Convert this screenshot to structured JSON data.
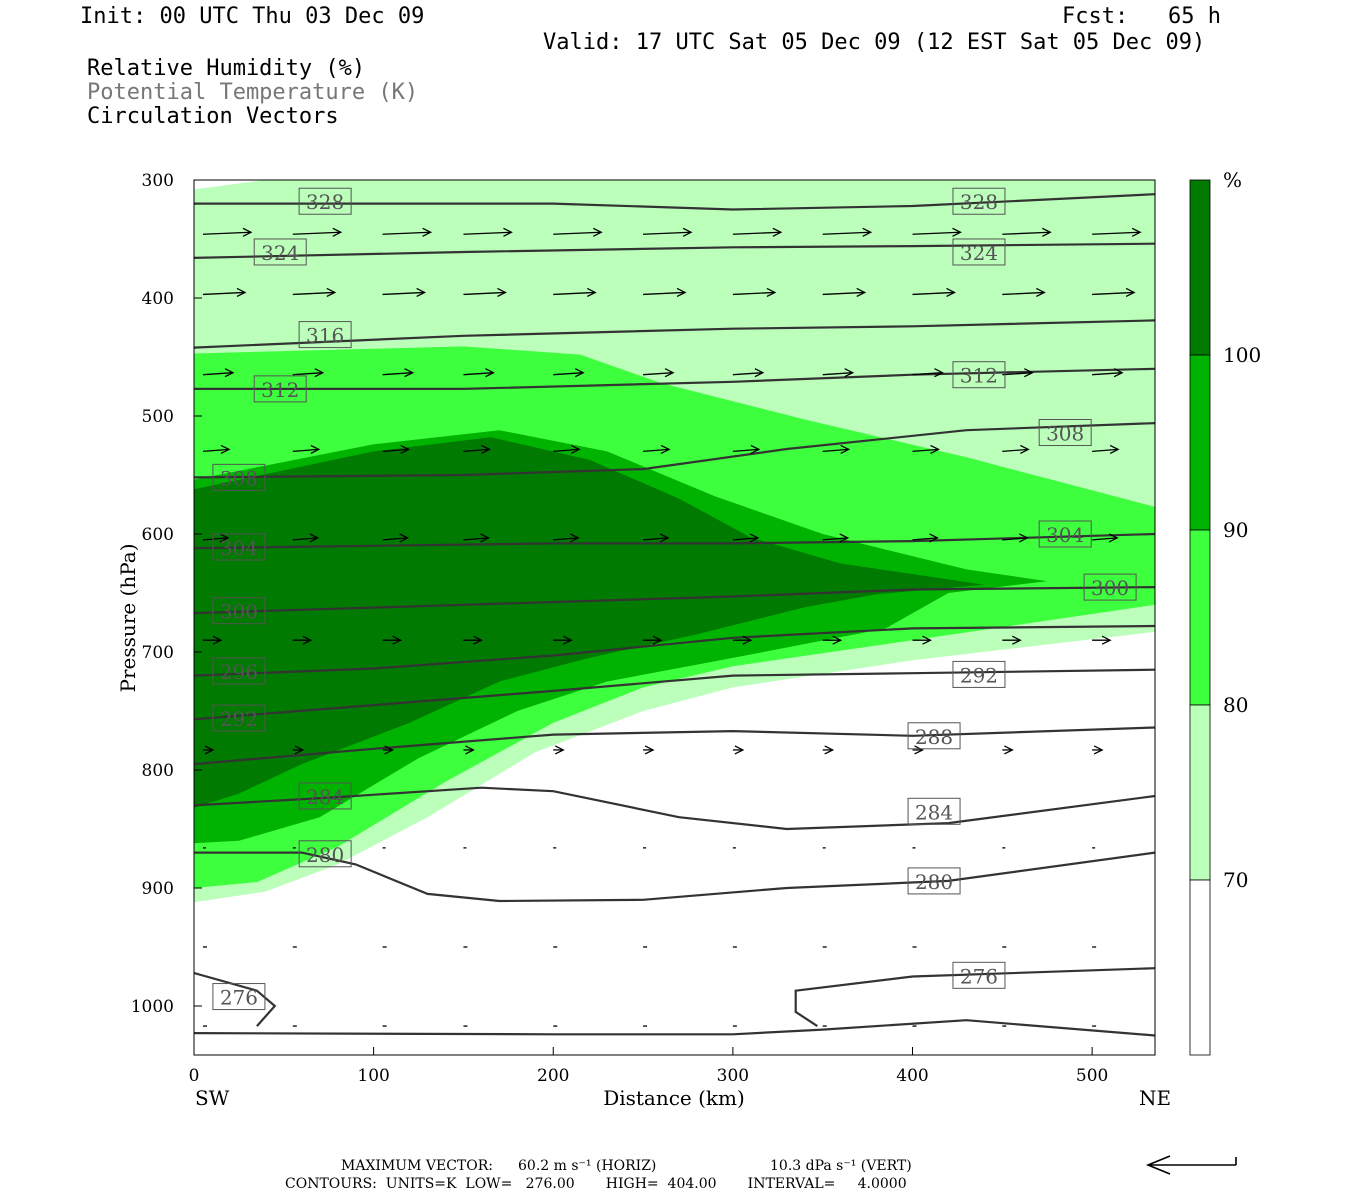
{
  "header": {
    "init": "Init: 00 UTC Thu 03 Dec 09",
    "fcst": "Fcst:   65 h",
    "valid": "Valid: 17 UTC Sat 05 Dec 09 (12 EST Sat 05 Dec 09)",
    "fields": [
      "Relative Humidity (%)",
      "Potential Temperature (K)",
      "Circulation Vectors"
    ]
  },
  "footer": {
    "max_vector_label": "MAXIMUM VECTOR:",
    "horiz": "60.2 m s⁻¹ (HORIZ)",
    "vert": "10.3 dPa s⁻¹ (VERT)",
    "contours": "CONTOURS:  UNITS=K  LOW=   276.00       HIGH=  404.00       INTERVAL=     4.0000"
  },
  "colors": {
    "rh_70": "#bbffbb",
    "rh_80": "#3dff3d",
    "rh_90": "#00b300",
    "rh_100": "#007a00",
    "contour": "#333333"
  },
  "chart_data": {
    "type": "heatmap",
    "title": "",
    "xlabel": "Distance (km)",
    "ylabel": "Pressure (hPa)",
    "xlim": [
      0,
      535
    ],
    "ylim": [
      1040,
      300
    ],
    "x_ticks": [
      0,
      100,
      200,
      300,
      400,
      500
    ],
    "y_ticks": [
      300,
      400,
      500,
      600,
      700,
      800,
      900,
      1000
    ],
    "x_ends": [
      "SW",
      "NE"
    ],
    "colorbar": {
      "unit": "%",
      "levels": [
        70,
        80,
        90,
        100
      ]
    },
    "rh_regions": [
      {
        "level": 70,
        "points": [
          [
            0,
            308
          ],
          [
            40,
            300
          ],
          [
            535,
            300
          ],
          [
            535,
            683
          ],
          [
            400,
            707
          ],
          [
            300,
            730
          ],
          [
            250,
            750
          ],
          [
            190,
            785
          ],
          [
            130,
            840
          ],
          [
            80,
            880
          ],
          [
            40,
            903
          ],
          [
            0,
            912
          ]
        ]
      },
      {
        "level": 80,
        "points": [
          [
            0,
            447
          ],
          [
            150,
            441
          ],
          [
            215,
            448
          ],
          [
            260,
            472
          ],
          [
            340,
            503
          ],
          [
            430,
            535
          ],
          [
            480,
            555
          ],
          [
            535,
            577
          ],
          [
            535,
            660
          ],
          [
            400,
            690
          ],
          [
            300,
            712
          ],
          [
            250,
            730
          ],
          [
            200,
            760
          ],
          [
            140,
            810
          ],
          [
            80,
            865
          ],
          [
            35,
            895
          ],
          [
            0,
            900
          ]
        ]
      },
      {
        "level": 90,
        "points": [
          [
            0,
            554
          ],
          [
            100,
            524
          ],
          [
            170,
            512
          ],
          [
            230,
            530
          ],
          [
            290,
            568
          ],
          [
            350,
            600
          ],
          [
            430,
            630
          ],
          [
            475,
            640
          ],
          [
            420,
            650
          ],
          [
            385,
            680
          ],
          [
            300,
            705
          ],
          [
            230,
            725
          ],
          [
            180,
            750
          ],
          [
            125,
            790
          ],
          [
            70,
            840
          ],
          [
            25,
            860
          ],
          [
            0,
            862
          ]
        ]
      },
      {
        "level": 100,
        "points": [
          [
            0,
            562
          ],
          [
            100,
            530
          ],
          [
            165,
            518
          ],
          [
            220,
            537
          ],
          [
            270,
            570
          ],
          [
            310,
            603
          ],
          [
            360,
            625
          ],
          [
            440,
            643
          ],
          [
            380,
            651
          ],
          [
            340,
            662
          ],
          [
            280,
            685
          ],
          [
            220,
            705
          ],
          [
            170,
            725
          ],
          [
            120,
            760
          ],
          [
            60,
            795
          ],
          [
            25,
            820
          ],
          [
            0,
            832
          ]
        ]
      }
    ],
    "theta_contours": [
      {
        "value": 328,
        "points": [
          [
            0,
            320
          ],
          [
            200,
            320
          ],
          [
            300,
            325
          ],
          [
            400,
            322
          ],
          [
            535,
            312
          ]
        ],
        "labels": [
          [
            73,
            318
          ],
          [
            437,
            318
          ]
        ]
      },
      {
        "value": 324,
        "points": [
          [
            0,
            366
          ],
          [
            150,
            361
          ],
          [
            300,
            357
          ],
          [
            400,
            356
          ],
          [
            535,
            354
          ]
        ],
        "labels": [
          [
            48,
            361
          ],
          [
            437,
            361
          ]
        ]
      },
      {
        "value": 316,
        "points": [
          [
            0,
            442
          ],
          [
            150,
            432
          ],
          [
            300,
            426
          ],
          [
            400,
            424
          ],
          [
            535,
            419
          ]
        ],
        "labels": [
          [
            73,
            431
          ]
        ]
      },
      {
        "value": 312,
        "points": [
          [
            0,
            477
          ],
          [
            150,
            477
          ],
          [
            300,
            471
          ],
          [
            400,
            465
          ],
          [
            535,
            460
          ]
        ],
        "labels": [
          [
            48,
            477
          ],
          [
            437,
            465
          ]
        ]
      },
      {
        "value": 308,
        "points": [
          [
            0,
            552
          ],
          [
            150,
            550
          ],
          [
            250,
            545
          ],
          [
            330,
            528
          ],
          [
            430,
            512
          ],
          [
            535,
            506
          ]
        ],
        "labels": [
          [
            25,
            552
          ],
          [
            485,
            514
          ]
        ]
      },
      {
        "value": 304,
        "points": [
          [
            0,
            612
          ],
          [
            100,
            610
          ],
          [
            200,
            608
          ],
          [
            300,
            608
          ],
          [
            400,
            606
          ],
          [
            535,
            600
          ]
        ],
        "labels": [
          [
            25,
            611
          ],
          [
            485,
            600
          ]
        ]
      },
      {
        "value": 300,
        "points": [
          [
            0,
            667
          ],
          [
            150,
            660
          ],
          [
            300,
            653
          ],
          [
            400,
            647
          ],
          [
            535,
            645
          ]
        ],
        "labels": [
          [
            25,
            665
          ],
          [
            510,
            645
          ]
        ]
      },
      {
        "value": 296,
        "points": [
          [
            0,
            720
          ],
          [
            100,
            714
          ],
          [
            200,
            703
          ],
          [
            300,
            688
          ],
          [
            400,
            680
          ],
          [
            535,
            678
          ]
        ],
        "labels": [
          [
            25,
            716
          ]
        ]
      },
      {
        "value": 292,
        "points": [
          [
            0,
            757
          ],
          [
            100,
            745
          ],
          [
            200,
            733
          ],
          [
            300,
            720
          ],
          [
            400,
            718
          ],
          [
            535,
            715
          ]
        ],
        "labels": [
          [
            25,
            756
          ],
          [
            437,
            719
          ]
        ]
      },
      {
        "value": 288,
        "points": [
          [
            0,
            795
          ],
          [
            100,
            782
          ],
          [
            200,
            770
          ],
          [
            300,
            767
          ],
          [
            400,
            771
          ],
          [
            535,
            764
          ]
        ],
        "labels": [
          [
            412,
            771
          ]
        ]
      },
      {
        "value": 284,
        "points": [
          [
            0,
            830
          ],
          [
            80,
            823
          ],
          [
            160,
            815
          ],
          [
            200,
            818
          ],
          [
            270,
            840
          ],
          [
            330,
            850
          ],
          [
            420,
            845
          ],
          [
            535,
            822
          ]
        ],
        "labels": [
          [
            73,
            822
          ],
          [
            412,
            835
          ]
        ]
      },
      {
        "value": 280,
        "points": [
          [
            0,
            870
          ],
          [
            60,
            870
          ],
          [
            90,
            880
          ],
          [
            130,
            905
          ],
          [
            170,
            911
          ],
          [
            250,
            910
          ],
          [
            330,
            900
          ],
          [
            420,
            894
          ],
          [
            535,
            870
          ]
        ],
        "labels": [
          [
            73,
            871
          ],
          [
            412,
            894
          ]
        ]
      },
      {
        "value": 276,
        "points": [
          [
            0,
            972
          ],
          [
            35,
            987
          ],
          [
            45,
            1000
          ],
          [
            35,
            1017
          ]
        ],
        "labels": [
          [
            25,
            992
          ]
        ]
      },
      {
        "value": 276,
        "points": [
          [
            347,
            1017
          ],
          [
            335,
            1005
          ],
          [
            335,
            987
          ],
          [
            400,
            975
          ],
          [
            535,
            968
          ]
        ],
        "labels": [
          [
            437,
            974
          ]
        ]
      },
      {
        "value": 276,
        "points": [
          [
            0,
            1023
          ],
          [
            200,
            1024
          ],
          [
            300,
            1024
          ],
          [
            350,
            1020
          ],
          [
            430,
            1012
          ],
          [
            535,
            1025
          ]
        ],
        "labels": []
      }
    ]
  }
}
